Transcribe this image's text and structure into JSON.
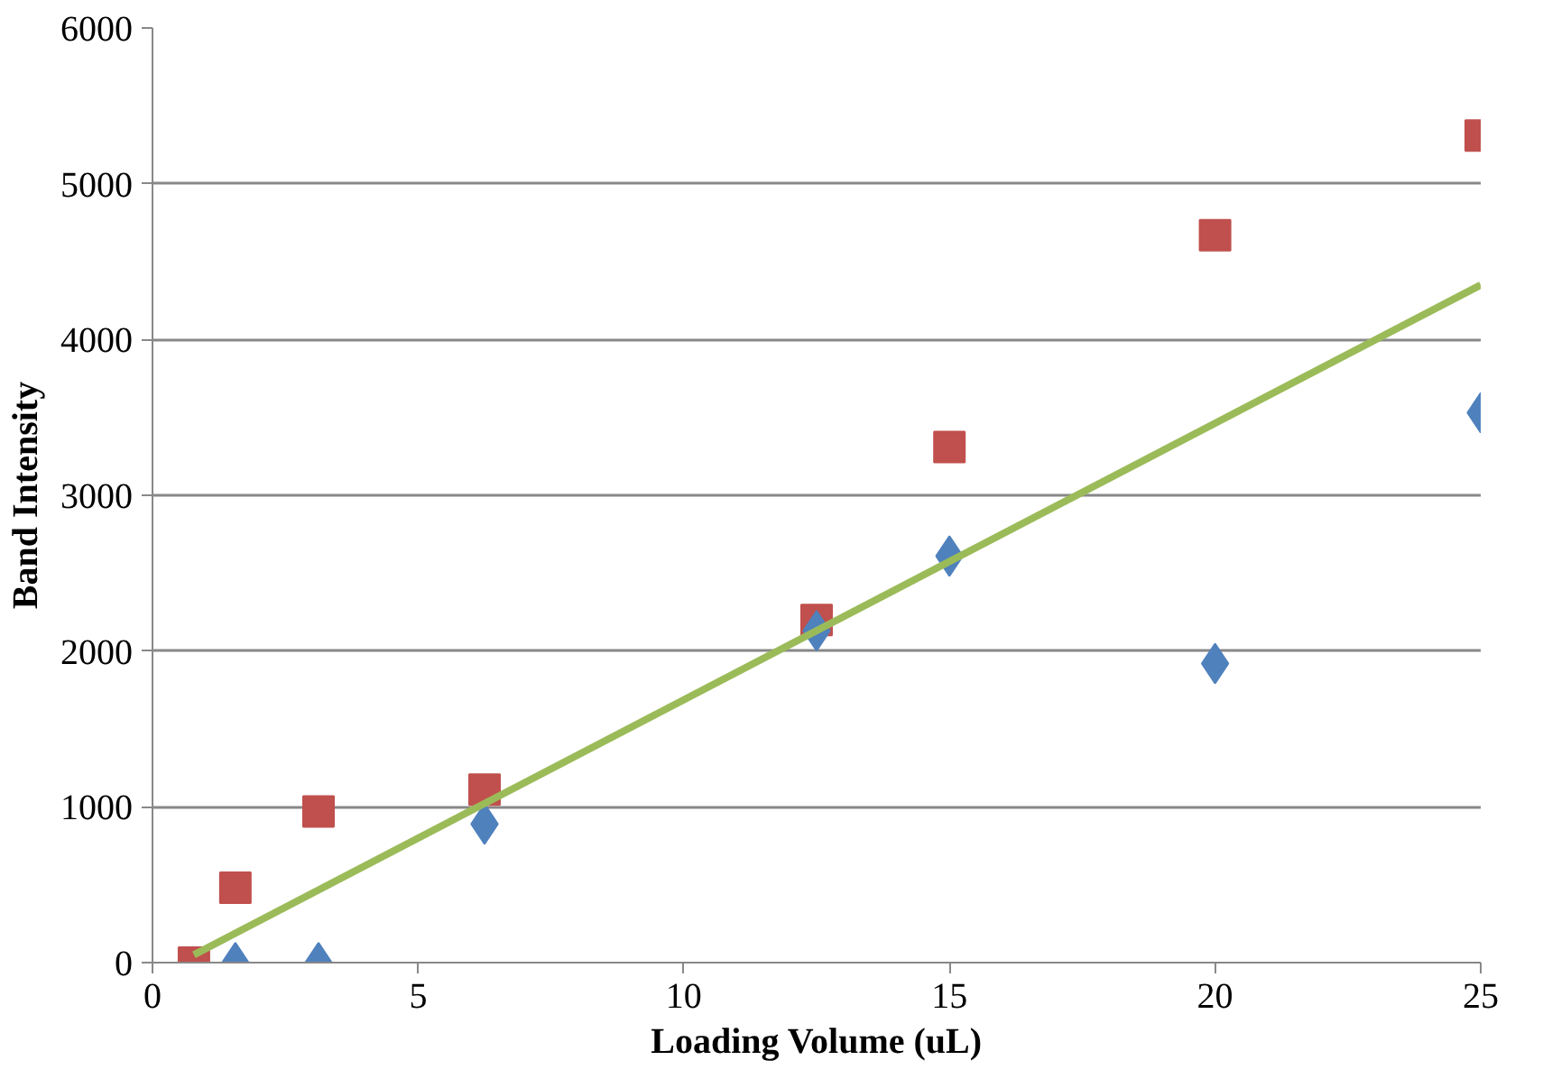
{
  "chart_data": {
    "type": "scatter",
    "xlabel": "Loading Volume (uL)",
    "ylabel": "Band Intensity",
    "xlim": [
      0,
      25
    ],
    "ylim": [
      0,
      6000
    ],
    "xticks": [
      0,
      5,
      10,
      15,
      20,
      25
    ],
    "yticks": [
      0,
      1000,
      2000,
      3000,
      4000,
      5000,
      6000
    ],
    "grid": "y",
    "series": [
      {
        "marker": "diamond",
        "color": "#4f81bd",
        "x": [
          1.56,
          3.125,
          6.25,
          12.5,
          15,
          20,
          25
        ],
        "values": [
          0,
          0,
          890,
          2130,
          2610,
          1920,
          3530
        ]
      },
      {
        "marker": "square",
        "color": "#c0504d",
        "x": [
          0.78,
          1.56,
          3.125,
          6.25,
          12.5,
          15,
          20,
          25
        ],
        "values": [
          0,
          480,
          970,
          1110,
          2200,
          3310,
          4670,
          5310
        ]
      },
      {
        "type": "line",
        "color": "#9bbb59",
        "x": [
          0.78,
          25
        ],
        "values": [
          50,
          4350
        ]
      }
    ]
  }
}
